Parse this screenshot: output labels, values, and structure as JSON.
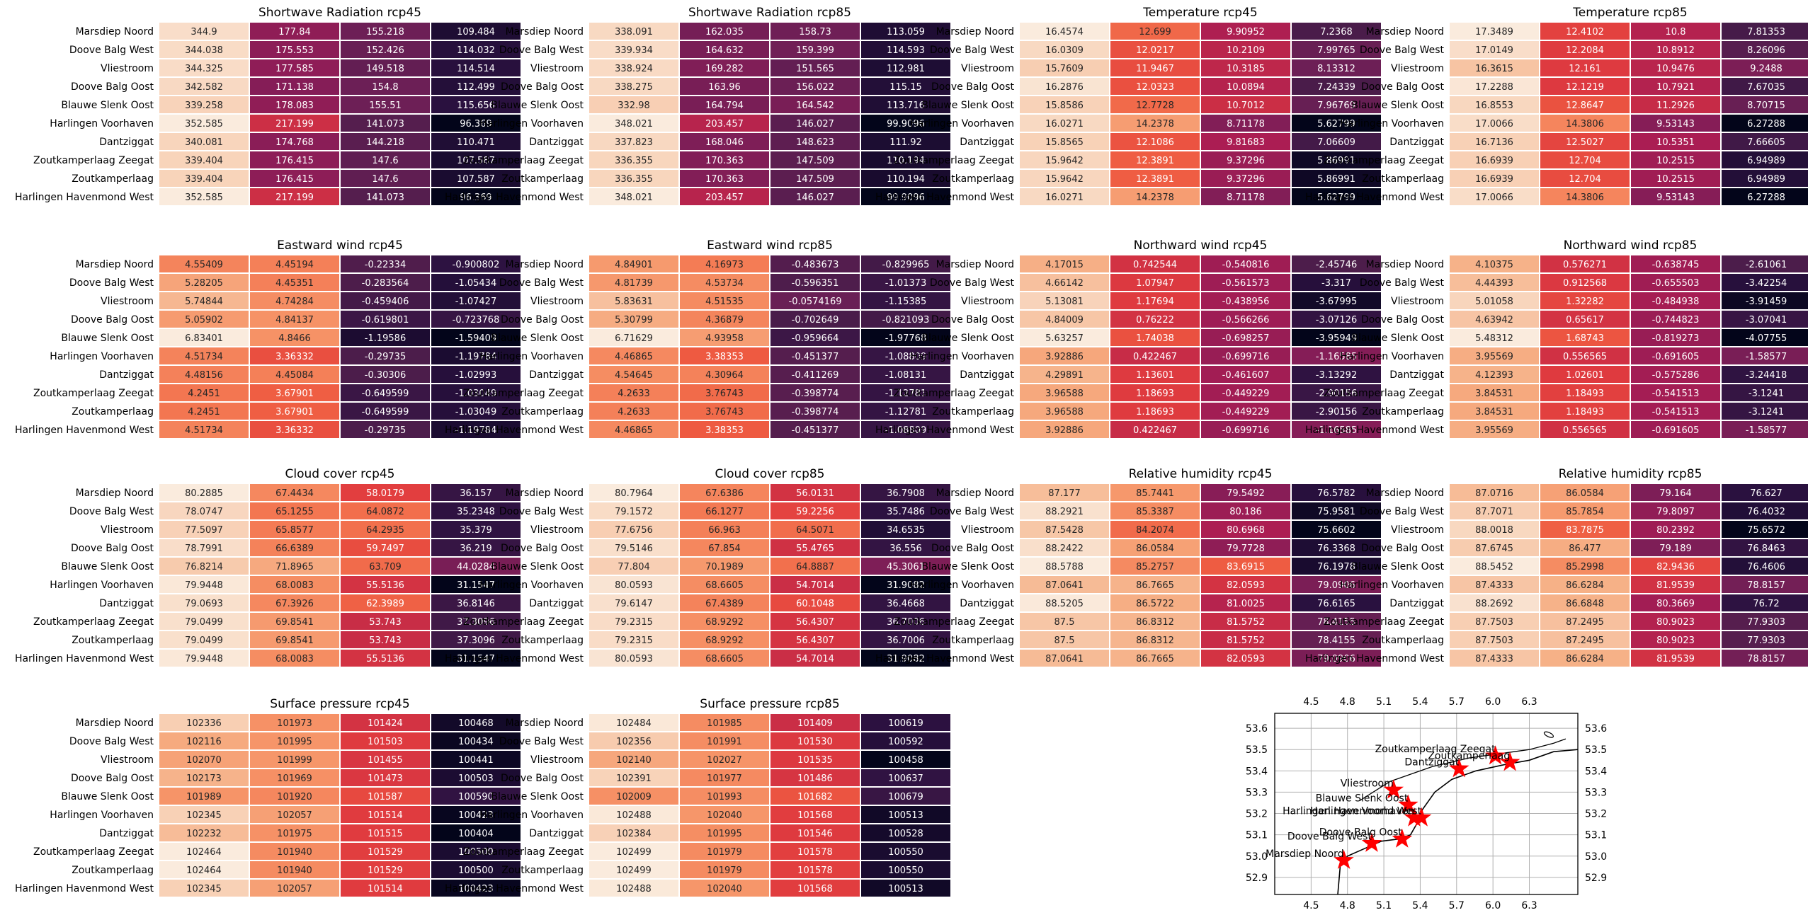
{
  "figure": {
    "stations": [
      "Marsdiep Noord",
      "Doove Balg West",
      "Vliestroom",
      "Doove Balg Oost",
      "Blauwe Slenk Oost",
      "Harlingen Voorhaven",
      "Dantziggat",
      "Zoutkamperlaag Zeegat",
      "Zoutkamperlaag",
      "Harlingen Havenmond West"
    ],
    "colormap": [
      "#03051a",
      "#2b1140",
      "#4c1d4b",
      "#6d1f56",
      "#8b1d57",
      "#aa1d53",
      "#c92d46",
      "#e03b3f",
      "#ee5a41",
      "#f37651",
      "#f69468",
      "#f6af85",
      "#f7c8a9",
      "#faebdd"
    ]
  },
  "chart_data": [
    {
      "type": "heatmap",
      "title": "Shortwave Radiation rcp45",
      "values": [
        [
          "344.9",
          "177.84",
          "155.218",
          "109.484"
        ],
        [
          "344.038",
          "175.553",
          "152.426",
          "114.032"
        ],
        [
          "344.325",
          "177.585",
          "149.518",
          "114.514"
        ],
        [
          "342.582",
          "171.138",
          "154.8",
          "112.499"
        ],
        [
          "339.258",
          "178.083",
          "155.51",
          "115.656"
        ],
        [
          "352.585",
          "217.199",
          "141.073",
          "96.369"
        ],
        [
          "340.081",
          "174.768",
          "144.218",
          "110.471"
        ],
        [
          "339.404",
          "176.415",
          "147.6",
          "107.587"
        ],
        [
          "339.404",
          "176.415",
          "147.6",
          "107.587"
        ],
        [
          "352.585",
          "217.199",
          "141.073",
          "96.369"
        ]
      ]
    },
    {
      "type": "heatmap",
      "title": "Shortwave Radiation rcp85",
      "values": [
        [
          "338.091",
          "162.035",
          "158.73",
          "113.059"
        ],
        [
          "339.934",
          "164.632",
          "159.399",
          "114.593"
        ],
        [
          "338.924",
          "169.282",
          "151.565",
          "112.981"
        ],
        [
          "338.275",
          "163.96",
          "156.022",
          "115.15"
        ],
        [
          "332.98",
          "164.794",
          "164.542",
          "113.716"
        ],
        [
          "348.021",
          "203.457",
          "146.027",
          "99.9096"
        ],
        [
          "337.823",
          "168.046",
          "148.623",
          "111.92"
        ],
        [
          "336.355",
          "170.363",
          "147.509",
          "110.194"
        ],
        [
          "336.355",
          "170.363",
          "147.509",
          "110.194"
        ],
        [
          "348.021",
          "203.457",
          "146.027",
          "99.9096"
        ]
      ]
    },
    {
      "type": "heatmap",
      "title": "Temperature rcp45",
      "values": [
        [
          "16.4574",
          "12.699",
          "9.90952",
          "7.2368"
        ],
        [
          "16.0309",
          "12.0217",
          "10.2109",
          "7.99765"
        ],
        [
          "15.7609",
          "11.9467",
          "10.3185",
          "8.13312"
        ],
        [
          "16.2876",
          "12.0323",
          "10.0894",
          "7.24339"
        ],
        [
          "15.8586",
          "12.7728",
          "10.7012",
          "7.96769"
        ],
        [
          "16.0271",
          "14.2378",
          "8.71178",
          "5.62799"
        ],
        [
          "15.8565",
          "12.1086",
          "9.81683",
          "7.06609"
        ],
        [
          "15.9642",
          "12.3891",
          "9.37296",
          "5.86991"
        ],
        [
          "15.9642",
          "12.3891",
          "9.37296",
          "5.86991"
        ],
        [
          "16.0271",
          "14.2378",
          "8.71178",
          "5.62799"
        ]
      ]
    },
    {
      "type": "heatmap",
      "title": "Temperature rcp85",
      "values": [
        [
          "17.3489",
          "12.4102",
          "10.8",
          "7.81353"
        ],
        [
          "17.0149",
          "12.2084",
          "10.8912",
          "8.26096"
        ],
        [
          "16.3615",
          "12.161",
          "10.9476",
          "9.2488"
        ],
        [
          "17.2288",
          "12.1219",
          "10.7921",
          "7.67035"
        ],
        [
          "16.8553",
          "12.8647",
          "11.2926",
          "8.70715"
        ],
        [
          "17.0066",
          "14.3806",
          "9.53143",
          "6.27288"
        ],
        [
          "16.7136",
          "12.5027",
          "10.5351",
          "7.66605"
        ],
        [
          "16.6939",
          "12.704",
          "10.2515",
          "6.94989"
        ],
        [
          "16.6939",
          "12.704",
          "10.2515",
          "6.94989"
        ],
        [
          "17.0066",
          "14.3806",
          "9.53143",
          "6.27288"
        ]
      ]
    },
    {
      "type": "heatmap",
      "title": "Eastward wind rcp45",
      "values": [
        [
          "4.55409",
          "4.45194",
          "-0.22334",
          "-0.900802"
        ],
        [
          "5.28205",
          "4.45351",
          "-0.283564",
          "-1.05434"
        ],
        [
          "5.74844",
          "4.74284",
          "-0.459406",
          "-1.07427"
        ],
        [
          "5.05902",
          "4.84137",
          "-0.619801",
          "-0.723768"
        ],
        [
          "6.83401",
          "4.8466",
          "-1.19586",
          "-1.59409"
        ],
        [
          "4.51734",
          "3.36332",
          "-0.29735",
          "-1.19784"
        ],
        [
          "4.48156",
          "4.45084",
          "-0.30306",
          "-1.02993"
        ],
        [
          "4.2451",
          "3.67901",
          "-0.649599",
          "-1.03049"
        ],
        [
          "4.2451",
          "3.67901",
          "-0.649599",
          "-1.03049"
        ],
        [
          "4.51734",
          "3.36332",
          "-0.29735",
          "-1.19784"
        ]
      ]
    },
    {
      "type": "heatmap",
      "title": "Eastward wind rcp85",
      "values": [
        [
          "4.84901",
          "4.16973",
          "-0.483673",
          "-0.829965"
        ],
        [
          "4.81739",
          "4.53734",
          "-0.596351",
          "-1.01373"
        ],
        [
          "5.83631",
          "4.51535",
          "-0.0574169",
          "-1.15385"
        ],
        [
          "5.30799",
          "4.36879",
          "-0.702649",
          "-0.821093"
        ],
        [
          "6.71629",
          "4.93958",
          "-0.959664",
          "-1.97768"
        ],
        [
          "4.46865",
          "3.38353",
          "-0.451377",
          "-1.08809"
        ],
        [
          "4.54645",
          "4.30964",
          "-0.411269",
          "-1.08131"
        ],
        [
          "4.2633",
          "3.76743",
          "-0.398774",
          "-1.12781"
        ],
        [
          "4.2633",
          "3.76743",
          "-0.398774",
          "-1.12781"
        ],
        [
          "4.46865",
          "3.38353",
          "-0.451377",
          "-1.08809"
        ]
      ]
    },
    {
      "type": "heatmap",
      "title": "Northward wind rcp45",
      "values": [
        [
          "4.17015",
          "0.742544",
          "-0.540816",
          "-2.45746"
        ],
        [
          "4.66142",
          "1.07947",
          "-0.561573",
          "-3.317"
        ],
        [
          "5.13081",
          "1.17694",
          "-0.438956",
          "-3.67995"
        ],
        [
          "4.84009",
          "0.76222",
          "-0.566266",
          "-3.07126"
        ],
        [
          "5.63257",
          "1.74038",
          "-0.698257",
          "-3.95949"
        ],
        [
          "3.92886",
          "0.422467",
          "-0.699716",
          "-1.16585"
        ],
        [
          "4.29891",
          "1.13601",
          "-0.461607",
          "-3.13292"
        ],
        [
          "3.96588",
          "1.18693",
          "-0.449229",
          "-2.90156"
        ],
        [
          "3.96588",
          "1.18693",
          "-0.449229",
          "-2.90156"
        ],
        [
          "3.92886",
          "0.422467",
          "-0.699716",
          "-1.16585"
        ]
      ]
    },
    {
      "type": "heatmap",
      "title": "Northward wind rcp85",
      "values": [
        [
          "4.10375",
          "0.576271",
          "-0.638745",
          "-2.61061"
        ],
        [
          "4.44393",
          "0.912568",
          "-0.655503",
          "-3.42254"
        ],
        [
          "5.01058",
          "1.32282",
          "-0.484938",
          "-3.91459"
        ],
        [
          "4.63942",
          "0.65617",
          "-0.744823",
          "-3.07041"
        ],
        [
          "5.48312",
          "1.68743",
          "-0.819273",
          "-4.07755"
        ],
        [
          "3.95569",
          "0.556565",
          "-0.691605",
          "-1.58577"
        ],
        [
          "4.12393",
          "1.02601",
          "-0.575286",
          "-3.24418"
        ],
        [
          "3.84531",
          "1.18493",
          "-0.541513",
          "-3.1241"
        ],
        [
          "3.84531",
          "1.18493",
          "-0.541513",
          "-3.1241"
        ],
        [
          "3.95569",
          "0.556565",
          "-0.691605",
          "-1.58577"
        ]
      ]
    },
    {
      "type": "heatmap",
      "title": "Cloud cover rcp45",
      "values": [
        [
          "80.2885",
          "67.4434",
          "58.0179",
          "36.157"
        ],
        [
          "78.0747",
          "65.1255",
          "64.0872",
          "35.2348"
        ],
        [
          "77.5097",
          "65.8577",
          "64.2935",
          "35.379"
        ],
        [
          "78.7991",
          "66.6389",
          "59.7497",
          "36.219"
        ],
        [
          "76.8214",
          "71.8965",
          "63.709",
          "44.0284"
        ],
        [
          "79.9448",
          "68.0083",
          "55.5136",
          "31.1547"
        ],
        [
          "79.0693",
          "67.3926",
          "62.3989",
          "36.8146"
        ],
        [
          "79.0499",
          "69.8541",
          "53.743",
          "37.3096"
        ],
        [
          "79.0499",
          "69.8541",
          "53.743",
          "37.3096"
        ],
        [
          "79.9448",
          "68.0083",
          "55.5136",
          "31.1547"
        ]
      ]
    },
    {
      "type": "heatmap",
      "title": "Cloud cover rcp85",
      "values": [
        [
          "80.7964",
          "67.6386",
          "56.0131",
          "36.7908"
        ],
        [
          "79.1572",
          "66.1277",
          "59.2256",
          "35.7486"
        ],
        [
          "77.6756",
          "66.963",
          "64.5071",
          "34.6535"
        ],
        [
          "79.5146",
          "67.854",
          "55.4765",
          "36.556"
        ],
        [
          "77.804",
          "70.1989",
          "64.8887",
          "45.3061"
        ],
        [
          "80.0593",
          "68.6605",
          "54.7014",
          "31.9082"
        ],
        [
          "79.6147",
          "67.4389",
          "60.1048",
          "36.4668"
        ],
        [
          "79.2315",
          "68.9292",
          "56.4307",
          "36.7006"
        ],
        [
          "79.2315",
          "68.9292",
          "56.4307",
          "36.7006"
        ],
        [
          "80.0593",
          "68.6605",
          "54.7014",
          "31.9082"
        ]
      ]
    },
    {
      "type": "heatmap",
      "title": "Relative humidity rcp45",
      "values": [
        [
          "87.177",
          "85.7441",
          "79.5492",
          "76.5782"
        ],
        [
          "88.2921",
          "85.3387",
          "80.186",
          "75.9581"
        ],
        [
          "87.5428",
          "84.2074",
          "80.6968",
          "75.6602"
        ],
        [
          "88.2422",
          "86.0584",
          "79.7728",
          "76.3368"
        ],
        [
          "88.5788",
          "85.2757",
          "83.6915",
          "76.1978"
        ],
        [
          "87.0641",
          "86.7665",
          "82.0593",
          "79.0906"
        ],
        [
          "88.5205",
          "86.5722",
          "81.0025",
          "76.6165"
        ],
        [
          "87.5",
          "86.8312",
          "81.5752",
          "78.4155"
        ],
        [
          "87.5",
          "86.8312",
          "81.5752",
          "78.4155"
        ],
        [
          "87.0641",
          "86.7665",
          "82.0593",
          "79.0906"
        ]
      ]
    },
    {
      "type": "heatmap",
      "title": "Relative humidity rcp85",
      "values": [
        [
          "87.0716",
          "86.0584",
          "79.164",
          "76.627"
        ],
        [
          "87.7071",
          "85.7854",
          "79.8097",
          "76.4032"
        ],
        [
          "88.0018",
          "83.7875",
          "80.2392",
          "75.6572"
        ],
        [
          "87.6745",
          "86.477",
          "79.189",
          "76.8463"
        ],
        [
          "88.5452",
          "85.2998",
          "82.9436",
          "76.4606"
        ],
        [
          "87.4333",
          "86.6284",
          "81.9539",
          "78.8157"
        ],
        [
          "88.2692",
          "86.6848",
          "80.3669",
          "76.72"
        ],
        [
          "87.7503",
          "87.2495",
          "80.9023",
          "77.9303"
        ],
        [
          "87.7503",
          "87.2495",
          "80.9023",
          "77.9303"
        ],
        [
          "87.4333",
          "86.6284",
          "81.9539",
          "78.8157"
        ]
      ]
    },
    {
      "type": "heatmap",
      "title": "Surface pressure rcp45",
      "values": [
        [
          "102336",
          "101973",
          "101424",
          "100468"
        ],
        [
          "102116",
          "101995",
          "101503",
          "100434"
        ],
        [
          "102070",
          "101999",
          "101455",
          "100441"
        ],
        [
          "102173",
          "101969",
          "101473",
          "100503"
        ],
        [
          "101989",
          "101920",
          "101587",
          "100590"
        ],
        [
          "102345",
          "102057",
          "101514",
          "100423"
        ],
        [
          "102232",
          "101975",
          "101515",
          "100404"
        ],
        [
          "102464",
          "101940",
          "101529",
          "100500"
        ],
        [
          "102464",
          "101940",
          "101529",
          "100500"
        ],
        [
          "102345",
          "102057",
          "101514",
          "100423"
        ]
      ]
    },
    {
      "type": "heatmap",
      "title": "Surface pressure rcp85",
      "values": [
        [
          "102484",
          "101985",
          "101409",
          "100619"
        ],
        [
          "102356",
          "101991",
          "101530",
          "100592"
        ],
        [
          "102140",
          "102027",
          "101535",
          "100458"
        ],
        [
          "102391",
          "101977",
          "101486",
          "100637"
        ],
        [
          "102009",
          "101993",
          "101682",
          "100679"
        ],
        [
          "102488",
          "102040",
          "101568",
          "100513"
        ],
        [
          "102384",
          "101995",
          "101546",
          "100528"
        ],
        [
          "102499",
          "101979",
          "101578",
          "100550"
        ],
        [
          "102499",
          "101979",
          "101578",
          "100550"
        ],
        [
          "102488",
          "102040",
          "101568",
          "100513"
        ]
      ]
    },
    {
      "type": "scatter",
      "xticks": [
        "4.5",
        "4.8",
        "5.1",
        "5.4",
        "5.7",
        "6.0",
        "6.3"
      ],
      "yticks": [
        "53.6",
        "53.5",
        "53.4",
        "53.3",
        "53.2",
        "53.1",
        "53.0",
        "52.9"
      ],
      "xlim": [
        4.2,
        6.7
      ],
      "ylim": [
        52.82,
        53.67
      ],
      "grid": true,
      "marker": "star",
      "marker_color": "#ff0000",
      "points": [
        {
          "label": "Marsdiep Noord",
          "x": 4.77,
          "y": 52.98
        },
        {
          "label": "Doove Balg West",
          "x": 5.0,
          "y": 53.06
        },
        {
          "label": "Vliestroom",
          "x": 5.18,
          "y": 53.31
        },
        {
          "label": "Doove Balg Oost",
          "x": 5.25,
          "y": 53.08
        },
        {
          "label": "Blauwe Slenk Oost",
          "x": 5.3,
          "y": 53.24
        },
        {
          "label": "Harlingen Voorhaven",
          "x": 5.35,
          "y": 53.18
        },
        {
          "label": "Dantziggat",
          "x": 5.72,
          "y": 53.41
        },
        {
          "label": "Zoutkamperlaag Zeegat",
          "x": 6.02,
          "y": 53.47
        },
        {
          "label": "Zoutkamperlaag",
          "x": 6.14,
          "y": 53.44
        },
        {
          "label": "Harlingen Havenmond West",
          "x": 5.41,
          "y": 53.18
        }
      ]
    }
  ]
}
